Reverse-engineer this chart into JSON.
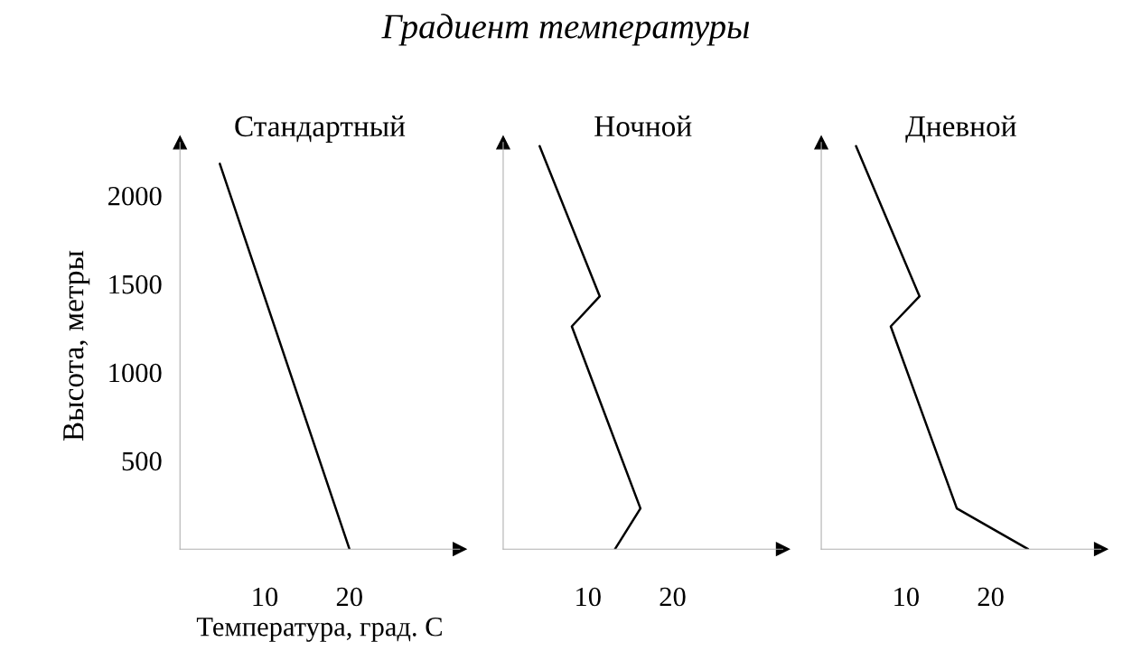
{
  "chart_data": [
    {
      "type": "line",
      "title": "Стандартный",
      "xlabel": "Температура, град. C",
      "ylabel": "Высота, метры",
      "annotations": [
        "Градиент температуры"
      ],
      "x": [
        4.7,
        20
      ],
      "values": [
        2180,
        0
      ],
      "xlim": [
        0,
        33
      ],
      "ylim": [
        0,
        2300
      ],
      "xticks": [
        10,
        20
      ],
      "yticks": [
        500,
        1000,
        1500,
        2000
      ],
      "color": "#000000"
    },
    {
      "type": "line",
      "title": "Ночной",
      "x": [
        4.3,
        11.4,
        8.1,
        16.2,
        13.2
      ],
      "values": [
        2280,
        1430,
        1260,
        230,
        0
      ],
      "xlim": [
        0,
        33
      ],
      "ylim": [
        0,
        2300
      ],
      "xticks": [
        10,
        20
      ],
      "tick_labels": "x",
      "color": "#000000"
    },
    {
      "type": "line",
      "title": "Дневной",
      "x": [
        4.1,
        11.6,
        8.2,
        16.0,
        24.4
      ],
      "values": [
        2280,
        1430,
        1260,
        230,
        0
      ],
      "xlim": [
        0,
        33
      ],
      "ylim": [
        0,
        2300
      ],
      "xticks": [
        10,
        20
      ],
      "tick_labels": "x",
      "color": "#000000"
    }
  ]
}
